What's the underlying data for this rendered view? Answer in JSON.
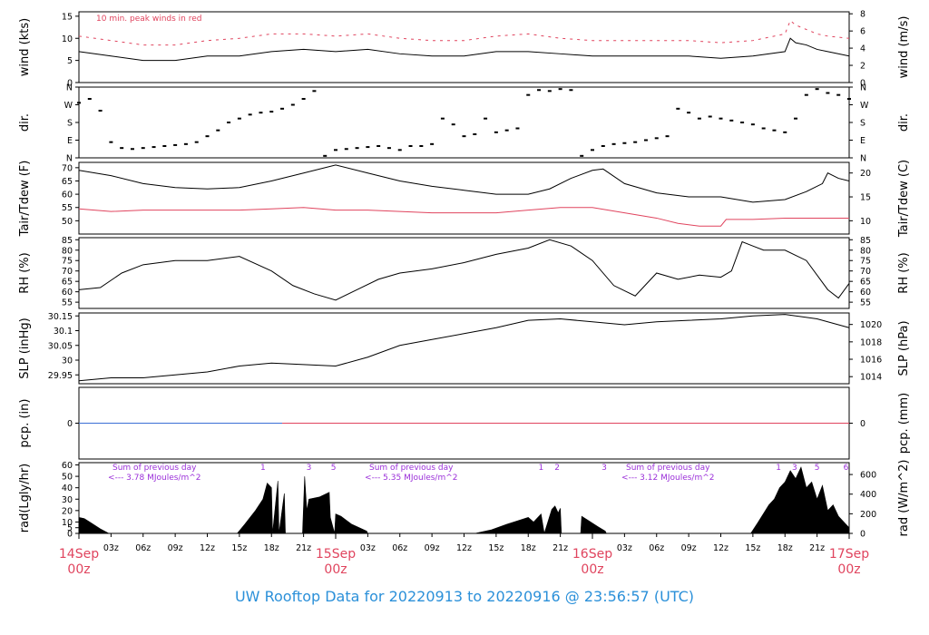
{
  "footer_title": "UW Rooftop Data for 20220913  to  20220916 @ 23:56:57  (UTC)",
  "colors": {
    "black": "#000000",
    "red": "#e0445e",
    "blue": "#3b6fd6",
    "purple": "#9b30d9",
    "title": "#2b90d9"
  },
  "x_axis": {
    "day_labels": [
      {
        "t": 0,
        "day": "14Sep",
        "hour": "00z"
      },
      {
        "t": 24,
        "day": "15Sep",
        "hour": "00z"
      },
      {
        "t": 48,
        "day": "16Sep",
        "hour": "00z"
      },
      {
        "t": 72,
        "day": "17Sep",
        "hour": "00z"
      }
    ],
    "hour_labels": [
      {
        "t": 3,
        "label": "03z"
      },
      {
        "t": 6,
        "label": "06z"
      },
      {
        "t": 9,
        "label": "09z"
      },
      {
        "t": 12,
        "label": "12z"
      },
      {
        "t": 15,
        "label": "15z"
      },
      {
        "t": 18,
        "label": "18z"
      },
      {
        "t": 21,
        "label": "21z"
      },
      {
        "t": 27,
        "label": "03z"
      },
      {
        "t": 30,
        "label": "06z"
      },
      {
        "t": 33,
        "label": "09z"
      },
      {
        "t": 36,
        "label": "12z"
      },
      {
        "t": 39,
        "label": "15z"
      },
      {
        "t": 42,
        "label": "18z"
      },
      {
        "t": 45,
        "label": "21z"
      },
      {
        "t": 51,
        "label": "03z"
      },
      {
        "t": 54,
        "label": "06z"
      },
      {
        "t": 57,
        "label": "09z"
      },
      {
        "t": 60,
        "label": "12z"
      },
      {
        "t": 63,
        "label": "15z"
      },
      {
        "t": 66,
        "label": "18z"
      },
      {
        "t": 69,
        "label": "21z"
      }
    ],
    "range_hours": [
      0,
      72
    ]
  },
  "chart_data": [
    {
      "id": "wind",
      "type": "line",
      "ylabel_left": "wind (kts)",
      "ylabel_right": "wind (m/s)",
      "annotation": "10 min. peak winds in red",
      "ylim": [
        0,
        16
      ],
      "left_ticks": [
        0,
        5,
        10,
        15
      ],
      "right_ticks": [
        {
          "label": "0",
          "at": 0
        },
        {
          "label": "2",
          "at": 3.89
        },
        {
          "label": "4",
          "at": 7.78
        },
        {
          "label": "6",
          "at": 11.66
        },
        {
          "label": "8",
          "at": 15.55
        }
      ],
      "series": [
        {
          "role": "mean",
          "color": "#000000",
          "x": [
            0,
            3,
            6,
            9,
            12,
            15,
            18,
            21,
            24,
            27,
            30,
            33,
            36,
            39,
            42,
            45,
            48,
            51,
            54,
            57,
            60,
            63,
            66,
            66.5,
            67,
            68,
            69,
            70,
            72
          ],
          "y": [
            7,
            6,
            5,
            5,
            6,
            6,
            7,
            7.5,
            7,
            7.5,
            6.5,
            6,
            6,
            7,
            7,
            6.5,
            6,
            6,
            6,
            6,
            5.5,
            6,
            7,
            10,
            9,
            8.5,
            7.5,
            7,
            6
          ]
        },
        {
          "role": "peak",
          "color": "#e0445e",
          "x": [
            0,
            3,
            6,
            9,
            12,
            15,
            18,
            21,
            24,
            27,
            30,
            33,
            36,
            39,
            42,
            45,
            48,
            51,
            54,
            57,
            60,
            63,
            66,
            66.5,
            67,
            68,
            69,
            70,
            72
          ],
          "y": [
            10.5,
            9.5,
            8.5,
            8.5,
            9.5,
            10,
            11,
            11,
            10.5,
            11,
            10,
            9.5,
            9.5,
            10.5,
            11,
            10,
            9.5,
            9.5,
            9.5,
            9.5,
            9,
            9.5,
            11,
            14,
            13,
            12,
            11,
            10.5,
            10
          ]
        }
      ]
    },
    {
      "id": "dir",
      "type": "scatter",
      "ylabel_left": "dir.",
      "ylabel_right": "dir.",
      "ylim": [
        0,
        360
      ],
      "y_tick_labels": [
        {
          "label": "N",
          "at": 0
        },
        {
          "label": "E",
          "at": 90
        },
        {
          "label": "S",
          "at": 180
        },
        {
          "label": "W",
          "at": 270
        },
        {
          "label": "N",
          "at": 360
        }
      ],
      "series": [
        {
          "color": "#000000",
          "x": [
            0,
            1,
            2,
            3,
            4,
            5,
            6,
            7,
            8,
            9,
            10,
            11,
            12,
            13,
            14,
            15,
            16,
            17,
            18,
            19,
            20,
            21,
            22,
            23,
            24,
            25,
            26,
            27,
            28,
            29,
            30,
            31,
            32,
            33,
            34,
            35,
            36,
            37,
            38,
            39,
            40,
            41,
            42,
            43,
            44,
            45,
            46,
            47,
            48,
            49,
            50,
            51,
            52,
            53,
            54,
            55,
            56,
            57,
            58,
            59,
            60,
            61,
            62,
            63,
            64,
            65,
            66,
            67,
            68,
            69,
            70,
            71,
            72
          ],
          "y": [
            280,
            300,
            240,
            80,
            50,
            45,
            50,
            55,
            60,
            65,
            70,
            80,
            110,
            140,
            180,
            200,
            220,
            230,
            235,
            250,
            270,
            300,
            340,
            10,
            40,
            45,
            50,
            55,
            60,
            50,
            40,
            60,
            60,
            70,
            200,
            170,
            110,
            120,
            200,
            130,
            140,
            150,
            320,
            345,
            340,
            350,
            345,
            10,
            40,
            60,
            70,
            75,
            80,
            90,
            100,
            110,
            250,
            230,
            200,
            210,
            200,
            190,
            180,
            170,
            150,
            140,
            130,
            200,
            320,
            350,
            330,
            320,
            300
          ]
        }
      ]
    },
    {
      "id": "temp",
      "type": "line",
      "ylabel_left": "Tair/Tdew (F)",
      "ylabel_right": "Tair/Tdew (C)",
      "ylim": [
        45,
        72
      ],
      "left_ticks": [
        50,
        55,
        60,
        65,
        70
      ],
      "right_ticks": [
        {
          "label": "10",
          "at": 50
        },
        {
          "label": "15",
          "at": 59
        },
        {
          "label": "20",
          "at": 68
        }
      ],
      "series": [
        {
          "role": "Tair",
          "color": "#000000",
          "x": [
            0,
            3,
            6,
            9,
            12,
            15,
            18,
            21,
            24,
            27,
            30,
            33,
            36,
            39,
            42,
            44,
            46,
            48,
            49,
            51,
            54,
            57,
            60,
            63,
            66,
            68,
            69.5,
            70,
            71,
            72
          ],
          "y": [
            69,
            67,
            64,
            62.5,
            62,
            62.5,
            65,
            68,
            71,
            68,
            65,
            63,
            61.5,
            60,
            60,
            62,
            66,
            69,
            69.5,
            64,
            60.5,
            59,
            59,
            57,
            58,
            61,
            64,
            68,
            66,
            65
          ]
        },
        {
          "role": "Tdew",
          "color": "#e0445e",
          "x": [
            0,
            3,
            6,
            9,
            12,
            15,
            18,
            21,
            24,
            27,
            30,
            33,
            36,
            39,
            42,
            45,
            48,
            51,
            54,
            56,
            58,
            60,
            60.5,
            63,
            66,
            69,
            72
          ],
          "y": [
            54.5,
            53.5,
            54,
            54,
            54,
            54,
            54.5,
            55,
            54,
            54,
            53.5,
            53,
            53,
            53,
            54,
            55,
            55,
            53,
            51,
            49,
            48,
            48,
            50.5,
            50.5,
            51,
            51,
            51
          ]
        }
      ]
    },
    {
      "id": "rh",
      "type": "line",
      "ylabel_left": "RH (%)",
      "ylabel_right": "RH (%)",
      "ylim": [
        52,
        86
      ],
      "left_ticks": [
        55,
        60,
        65,
        70,
        75,
        80,
        85
      ],
      "right_ticks_same": true,
      "series": [
        {
          "color": "#000000",
          "x": [
            0,
            2,
            4,
            6,
            9,
            12,
            15,
            18,
            20,
            22,
            24,
            26,
            28,
            30,
            33,
            36,
            39,
            42,
            44,
            46,
            48,
            50,
            52,
            54,
            56,
            58,
            60,
            61,
            62,
            63,
            64,
            66,
            68,
            70,
            71,
            72
          ],
          "y": [
            61,
            62,
            69,
            73,
            75,
            75,
            77,
            70,
            63,
            59,
            56,
            61,
            66,
            69,
            71,
            74,
            78,
            81,
            85,
            82,
            75,
            63,
            58,
            69,
            66,
            68,
            67,
            70,
            84,
            82,
            80,
            80,
            75,
            61,
            57,
            64
          ]
        }
      ]
    },
    {
      "id": "slp",
      "type": "line",
      "ylabel_left": "SLP (inHg)",
      "ylabel_right": "SLP (hPa)",
      "ylim": [
        29.92,
        30.16
      ],
      "left_ticks": [
        29.95,
        30.0,
        30.05,
        30.1,
        30.15
      ],
      "right_ticks": [
        {
          "label": "1014",
          "at": 29.944
        },
        {
          "label": "1016",
          "at": 30.003
        },
        {
          "label": "1018",
          "at": 30.062
        },
        {
          "label": "1020",
          "at": 30.121
        }
      ],
      "series": [
        {
          "color": "#000000",
          "x": [
            0,
            3,
            6,
            9,
            12,
            15,
            18,
            21,
            24,
            27,
            30,
            33,
            36,
            39,
            42,
            45,
            48,
            51,
            54,
            57,
            60,
            63,
            66,
            69,
            72
          ],
          "y": [
            29.93,
            29.94,
            29.94,
            29.95,
            29.96,
            29.98,
            29.99,
            29.985,
            29.98,
            30.01,
            30.05,
            30.07,
            30.09,
            30.11,
            30.135,
            30.14,
            30.13,
            30.12,
            30.13,
            30.135,
            30.14,
            30.15,
            30.155,
            30.14,
            30.11
          ]
        }
      ]
    },
    {
      "id": "pcp",
      "type": "line",
      "ylabel_left": "pcp. (in)",
      "ylabel_right": "pcp. (mm)",
      "ylim": [
        -1,
        1
      ],
      "left_ticks": [
        0
      ],
      "right_ticks": [
        {
          "label": "0",
          "at": 0
        }
      ],
      "series": [
        {
          "color": "#3b6fd6",
          "x": [
            0,
            19
          ],
          "y": [
            0,
            0
          ]
        },
        {
          "color": "#e0445e",
          "x": [
            19,
            72
          ],
          "y": [
            0,
            0
          ]
        }
      ]
    },
    {
      "id": "rad",
      "type": "area",
      "ylabel_left": "rad(Lgly/hr)",
      "ylabel_right": "rad (W/m^2)",
      "ylim": [
        0,
        62
      ],
      "left_ticks": [
        0,
        5,
        10,
        20,
        30,
        40,
        50,
        60
      ],
      "right_ticks": [
        {
          "label": "0",
          "at": 0
        },
        {
          "label": "200",
          "at": 17.2
        },
        {
          "label": "400",
          "at": 34.4
        },
        {
          "label": "600",
          "at": 51.6
        }
      ],
      "daily_notes": [
        {
          "t": 3.5,
          "line1": "Sum of previous day",
          "line2": "<--- 3.78 MJoules/m^2"
        },
        {
          "t": 27.5,
          "line1": "Sum of previous day",
          "line2": "<--- 5.35 MJoules/m^2"
        },
        {
          "t": 51.5,
          "line1": "Sum of previous day",
          "line2": "<--- 3.12 MJoules/m^2"
        }
      ],
      "hour_marks": [
        {
          "t": 17.2,
          "label": "1"
        },
        {
          "t": 21.5,
          "label": "3"
        },
        {
          "t": 23.8,
          "label": "5"
        },
        {
          "t": 43.2,
          "label": "1"
        },
        {
          "t": 44.7,
          "label": "2"
        },
        {
          "t": 49.1,
          "label": "3"
        },
        {
          "t": 65.4,
          "label": "1"
        },
        {
          "t": 66.9,
          "label": "3"
        },
        {
          "t": 69.0,
          "label": "5"
        },
        {
          "t": 71.7,
          "label": "6"
        }
      ],
      "series": [
        {
          "color": "#000000",
          "x": [
            0,
            0.5,
            1,
            2,
            2.8,
            14.8,
            15.5,
            16.5,
            17.2,
            17.6,
            18,
            18.1,
            18.6,
            18.7,
            19.2,
            19.3,
            19.6,
            19.7,
            20.9,
            21.1,
            21.3,
            21.5,
            22.5,
            23.4,
            23.5,
            23.9,
            24,
            24.5,
            25.5,
            26.9,
            27,
            37,
            38.5,
            40,
            41,
            42,
            42.5,
            43.2,
            43.5,
            44.2,
            44.5,
            44.8,
            45,
            45.1,
            46.9,
            47,
            47.5,
            48.5,
            49.2,
            49.3,
            62.8,
            63.5,
            64.5,
            65,
            65.5,
            66,
            66.5,
            67,
            67.5,
            68,
            68.5,
            69,
            69.5,
            70,
            70.5,
            71,
            71.5,
            72
          ],
          "y": [
            14,
            13,
            10,
            4,
            0,
            0,
            8,
            20,
            30,
            44,
            40,
            0,
            46,
            0,
            35,
            0,
            0,
            0,
            0,
            50,
            20,
            30,
            32,
            36,
            14,
            0,
            17,
            15,
            8,
            2,
            0,
            0,
            3,
            8,
            11,
            14,
            10,
            17,
            0,
            21,
            24,
            18,
            22,
            0,
            0,
            15,
            12,
            6,
            2,
            0,
            0,
            10,
            25,
            30,
            40,
            45,
            55,
            48,
            58,
            40,
            45,
            30,
            42,
            20,
            25,
            15,
            10,
            5
          ]
        }
      ]
    }
  ]
}
